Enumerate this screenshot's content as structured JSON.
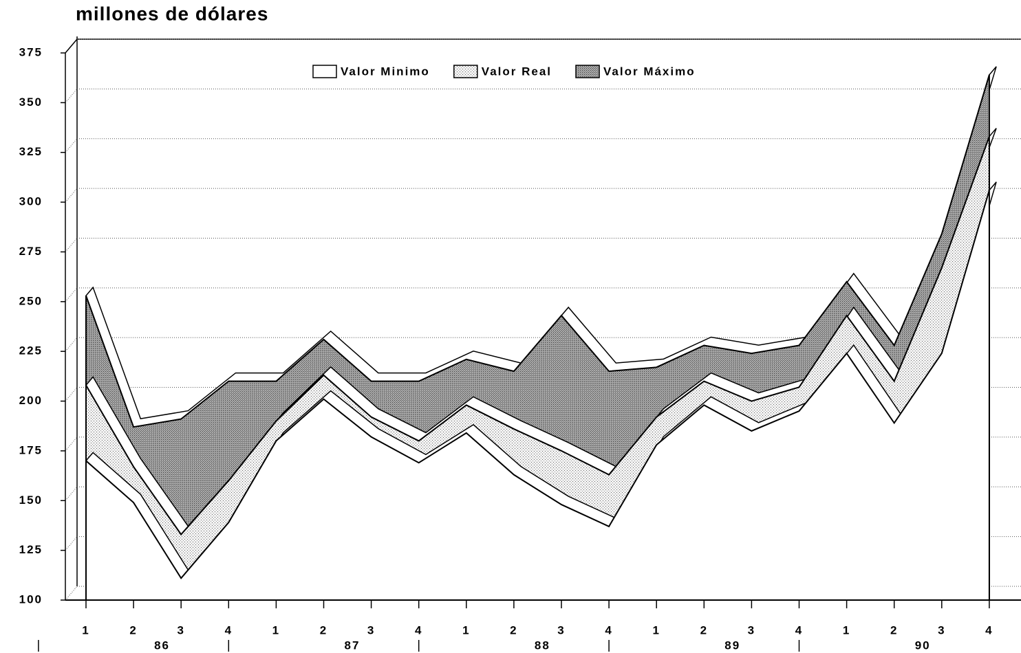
{
  "chart_data": {
    "type": "area",
    "title": "millones de dólares",
    "categories": [
      "1",
      "2",
      "3",
      "4",
      "1",
      "2",
      "3",
      "4",
      "1",
      "2",
      "3",
      "4",
      "1",
      "2",
      "3",
      "4",
      "1",
      "2",
      "3",
      "4"
    ],
    "years": [
      "86",
      "87",
      "88",
      "89",
      "90"
    ],
    "series": [
      {
        "name": "Valor Máximo",
        "color": "#8c8c8c",
        "values": [
          253,
          187,
          191,
          210,
          210,
          231,
          210,
          210,
          221,
          215,
          243,
          215,
          217,
          228,
          224,
          228,
          260,
          228,
          284,
          364
        ]
      },
      {
        "name": "Valor Real",
        "color": "#d4d4d4",
        "values": [
          208,
          167,
          133,
          160,
          190,
          213,
          192,
          180,
          198,
          186,
          175,
          163,
          192,
          210,
          200,
          207,
          243,
          210,
          267,
          333
        ]
      },
      {
        "name": "Valor Minimo",
        "color": "#ffffff",
        "values": [
          170,
          149,
          111,
          139,
          180,
          201,
          182,
          169,
          184,
          163,
          148,
          137,
          178,
          198,
          185,
          195,
          224,
          189,
          224,
          306
        ]
      }
    ],
    "legend_order": [
      2,
      1,
      0
    ],
    "ylim": [
      100,
      375
    ],
    "yticks": [
      100,
      125,
      150,
      175,
      200,
      225,
      250,
      275,
      300,
      325,
      350,
      375
    ],
    "grid": true
  }
}
